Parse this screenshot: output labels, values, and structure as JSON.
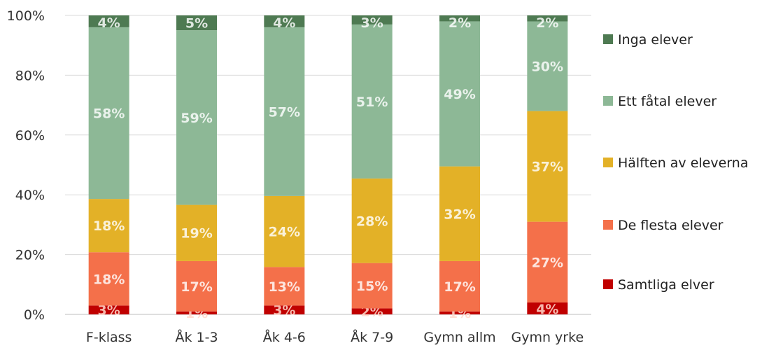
{
  "chart_data": {
    "type": "bar",
    "stacked": true,
    "percent_stacked": true,
    "categories": [
      "F-klass",
      "Åk 1-3",
      "Åk 4-6",
      "Åk 7-9",
      "Gymn allm",
      "Gymn yrke"
    ],
    "series": [
      {
        "name": "Samtliga elver",
        "color": "#c00000",
        "values": [
          3,
          1,
          3,
          2,
          1,
          4
        ],
        "labels": [
          "3%",
          "1%",
          "3%",
          "2%",
          "1%",
          "4%"
        ]
      },
      {
        "name": "De flesta elever",
        "color": "#f4704a",
        "values": [
          18,
          17,
          13,
          15,
          17,
          27
        ],
        "labels": [
          "18%",
          "17%",
          "13%",
          "15%",
          "17%",
          "27%"
        ]
      },
      {
        "name": "Hälften av eleverna",
        "color": "#e3b127",
        "values": [
          18,
          19,
          24,
          28,
          32,
          37
        ],
        "labels": [
          "18%",
          "19%",
          "24%",
          "28%",
          "32%",
          "37%"
        ]
      },
      {
        "name": "Ett fåtal elever",
        "color": "#8db896",
        "values": [
          58,
          59,
          57,
          51,
          49,
          30
        ],
        "labels": [
          "58%",
          "59%",
          "57%",
          "51%",
          "49%",
          "30%"
        ]
      },
      {
        "name": "Inga elever",
        "color": "#4e7a52",
        "values": [
          4,
          5,
          4,
          3,
          2,
          2
        ],
        "labels": [
          "4%",
          "5%",
          "4%",
          "3%",
          "2%",
          "2%"
        ]
      }
    ],
    "y_ticks": [
      "0%",
      "20%",
      "40%",
      "60%",
      "80%",
      "100%"
    ],
    "ylim": [
      0,
      100
    ],
    "grid": true,
    "legend_position": "right",
    "title": "",
    "xlabel": "",
    "ylabel": ""
  }
}
